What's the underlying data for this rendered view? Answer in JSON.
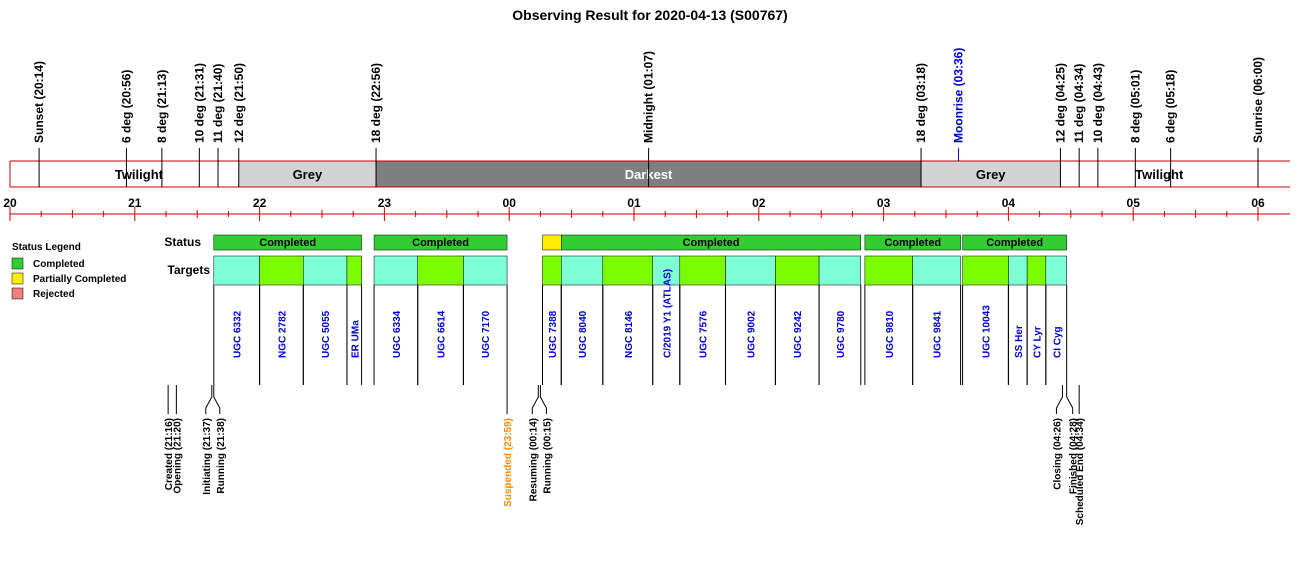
{
  "title": "Observing Result for 2020-04-13 (S00767)",
  "colors": {
    "twilight": "#ffffff",
    "grey": "#d3d3d3",
    "darkest": "#7f7f7f",
    "axis": "#cc0000",
    "completed": "#33cc33",
    "partial": "#ffee00",
    "rejected": "#f08080",
    "target_a": "#7fffd4",
    "target_b": "#7cfc00",
    "moon": "#0000cc",
    "suspended": "#ff8c00"
  },
  "sun_events": [
    {
      "label": "Sunset (20:14)",
      "t": 20.233,
      "kind": "sun"
    },
    {
      "label": "6 deg (20:56)",
      "t": 20.933,
      "kind": "sun"
    },
    {
      "label": "8 deg (21:13)",
      "t": 21.217,
      "kind": "sun"
    },
    {
      "label": "10 deg (21:31)",
      "t": 21.517,
      "kind": "sun"
    },
    {
      "label": "11 deg (21:40)",
      "t": 21.667,
      "kind": "sun"
    },
    {
      "label": "12 deg (21:50)",
      "t": 21.833,
      "kind": "sun"
    },
    {
      "label": "18 deg (22:56)",
      "t": 22.933,
      "kind": "sun"
    },
    {
      "label": "Midnight (01:07)",
      "t": 25.117,
      "kind": "sun"
    },
    {
      "label": "18 deg (03:18)",
      "t": 27.3,
      "kind": "sun"
    },
    {
      "label": "Moonrise (03:36)",
      "t": 27.6,
      "kind": "moon"
    },
    {
      "label": "12 deg (04:25)",
      "t": 28.417,
      "kind": "sun"
    },
    {
      "label": "11 deg (04:34)",
      "t": 28.567,
      "kind": "sun"
    },
    {
      "label": "10 deg (04:43)",
      "t": 28.717,
      "kind": "sun"
    },
    {
      "label": "8 deg (05:01)",
      "t": 29.017,
      "kind": "sun"
    },
    {
      "label": "6 deg (05:18)",
      "t": 29.3,
      "kind": "sun"
    },
    {
      "label": "Sunrise (06:00)",
      "t": 30.0,
      "kind": "sun"
    }
  ],
  "segments": [
    {
      "label": "Twilight",
      "start": 20.233,
      "end": 21.833,
      "shade": "twilight"
    },
    {
      "label": "Grey",
      "start": 21.833,
      "end": 22.933,
      "shade": "grey"
    },
    {
      "label": "Darkest",
      "start": 22.933,
      "end": 27.3,
      "shade": "darkest"
    },
    {
      "label": "Grey",
      "start": 27.3,
      "end": 28.417,
      "shade": "grey"
    },
    {
      "label": "Twilight",
      "start": 28.417,
      "end": 30.0,
      "shade": "twilight"
    }
  ],
  "hour_labels": [
    "20",
    "21",
    "22",
    "23",
    "00",
    "01",
    "02",
    "03",
    "04",
    "05",
    "06"
  ],
  "row_labels": {
    "status": "Status",
    "targets": "Targets"
  },
  "status_bars": [
    {
      "label": "Completed",
      "start": 21.633,
      "end": 22.817,
      "status": "completed"
    },
    {
      "label": "Completed",
      "start": 22.917,
      "end": 23.983,
      "status": "completed"
    },
    {
      "label": "",
      "start": 24.267,
      "end": 24.417,
      "status": "partial"
    },
    {
      "label": "Completed",
      "start": 24.417,
      "end": 26.817,
      "status": "completed"
    },
    {
      "label": "Completed",
      "start": 26.85,
      "end": 27.617,
      "status": "completed"
    },
    {
      "label": "Completed",
      "start": 27.633,
      "end": 28.467,
      "status": "completed"
    }
  ],
  "targets": [
    {
      "name": "UGC 6332",
      "start": 21.633,
      "end": 22.0,
      "color": "target_a"
    },
    {
      "name": "NGC 2782",
      "start": 22.0,
      "end": 22.35,
      "color": "target_b"
    },
    {
      "name": "UGC 5055",
      "start": 22.35,
      "end": 22.7,
      "color": "target_a"
    },
    {
      "name": "ER UMa",
      "start": 22.7,
      "end": 22.817,
      "color": "target_b"
    },
    {
      "name": "UGC 6334",
      "start": 22.917,
      "end": 23.267,
      "color": "target_a"
    },
    {
      "name": "UGC 6614",
      "start": 23.267,
      "end": 23.633,
      "color": "target_b"
    },
    {
      "name": "UGC 7170",
      "start": 23.633,
      "end": 23.983,
      "color": "target_a"
    },
    {
      "name": "UGC 7388",
      "start": 24.267,
      "end": 24.417,
      "color": "target_b"
    },
    {
      "name": "UGC 8040",
      "start": 24.417,
      "end": 24.75,
      "color": "target_a"
    },
    {
      "name": "NGC 8146",
      "start": 24.75,
      "end": 25.15,
      "color": "target_b"
    },
    {
      "name": "C/2019 Y1 (ATLAS)",
      "start": 25.15,
      "end": 25.367,
      "color": "target_a"
    },
    {
      "name": "UGC 7576",
      "start": 25.367,
      "end": 25.733,
      "color": "target_b"
    },
    {
      "name": "UGC 9002",
      "start": 25.733,
      "end": 26.133,
      "color": "target_a"
    },
    {
      "name": "UGC 9242",
      "start": 26.133,
      "end": 26.483,
      "color": "target_b"
    },
    {
      "name": "UGC 9780",
      "start": 26.483,
      "end": 26.817,
      "color": "target_a"
    },
    {
      "name": "UGC 9810",
      "start": 26.85,
      "end": 27.233,
      "color": "target_b"
    },
    {
      "name": "UGC 9841",
      "start": 27.233,
      "end": 27.617,
      "color": "target_a"
    },
    {
      "name": "UGC 10043",
      "start": 27.633,
      "end": 28.0,
      "color": "target_b"
    },
    {
      "name": "SS Her",
      "start": 28.0,
      "end": 28.15,
      "color": "target_a"
    },
    {
      "name": "CY Lyr",
      "start": 28.15,
      "end": 28.3,
      "color": "target_b"
    },
    {
      "name": "CI Cyg",
      "start": 28.3,
      "end": 28.467,
      "color": "target_a"
    }
  ],
  "run_events": [
    {
      "label": "Created (21:16)",
      "t": 21.267,
      "kind": "normal"
    },
    {
      "label": "Opening (21:20)",
      "t": 21.333,
      "kind": "normal"
    },
    {
      "label": "Initiating (21:37)",
      "t": 21.617,
      "kind": "normal"
    },
    {
      "label": "Running (21:38)",
      "t": 21.633,
      "kind": "normal"
    },
    {
      "label": "Suspended (23:59)",
      "t": 23.983,
      "kind": "suspended"
    },
    {
      "label": "Resuming (00:14)",
      "t": 24.233,
      "kind": "normal"
    },
    {
      "label": "Running (00:15)",
      "t": 24.25,
      "kind": "normal"
    },
    {
      "label": "Closing (04:26)",
      "t": 28.433,
      "kind": "normal"
    },
    {
      "label": "Finished (04:28)",
      "t": 28.467,
      "kind": "normal"
    },
    {
      "label": "Scheduled End (04:34)",
      "t": 28.567,
      "kind": "normal"
    }
  ],
  "legend": {
    "title": "Status Legend",
    "items": [
      {
        "label": "Completed",
        "status": "completed"
      },
      {
        "label": "Partially Completed",
        "status": "partial"
      },
      {
        "label": "Rejected",
        "status": "rejected"
      }
    ]
  }
}
